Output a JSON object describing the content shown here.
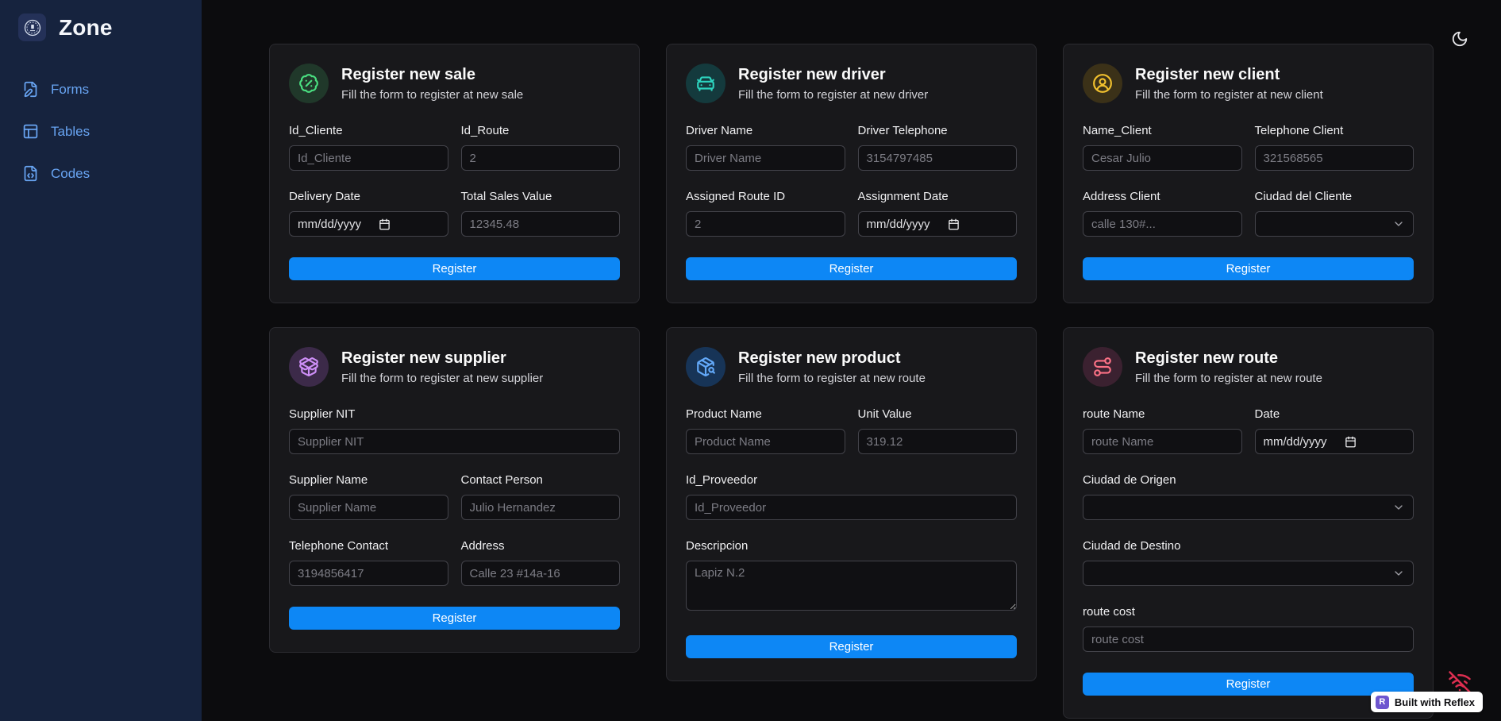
{
  "app": {
    "title": "Zone"
  },
  "sidebar": {
    "items": [
      {
        "label": "Forms",
        "icon": "file-pen-icon"
      },
      {
        "label": "Tables",
        "icon": "table-icon"
      },
      {
        "label": "Codes",
        "icon": "file-code-icon"
      }
    ]
  },
  "topbar": {
    "theme_icon": "moon-icon"
  },
  "colors": {
    "accent_button": "#0d87f5",
    "sidebar_bg": "#16233e",
    "card_bg": "#18181b",
    "page_bg": "#0c0c0e",
    "nav_link": "#68a4f2",
    "error_icon": "#dc2e50"
  },
  "cards": [
    {
      "key": "sale",
      "icon": "badge-percent-icon",
      "icon_color": "#4ade80",
      "icon_bg": "#20382a",
      "title": "Register new sale",
      "subtitle": "Fill the form to register at new sale",
      "button_label": "Register",
      "fields": [
        {
          "label": "Id_Cliente",
          "type": "text",
          "placeholder": "Id_Cliente",
          "span": "half"
        },
        {
          "label": "Id_Route",
          "type": "text",
          "placeholder": "2",
          "span": "half"
        },
        {
          "label": "Delivery Date",
          "type": "date",
          "placeholder": "mm/dd/yyyy",
          "span": "half"
        },
        {
          "label": "Total Sales Value",
          "type": "text",
          "placeholder": "12345.48",
          "span": "half"
        }
      ]
    },
    {
      "key": "driver",
      "icon": "car-front-icon",
      "icon_color": "#2dd4bf",
      "icon_bg": "#143a3d",
      "title": "Register new driver",
      "subtitle": "Fill the form to register at new driver",
      "button_label": "Register",
      "fields": [
        {
          "label": "Driver Name",
          "type": "text",
          "placeholder": "Driver Name",
          "span": "half"
        },
        {
          "label": "Driver Telephone",
          "type": "text",
          "placeholder": "3154797485",
          "span": "half"
        },
        {
          "label": "Assigned Route ID",
          "type": "text",
          "placeholder": "2",
          "span": "half"
        },
        {
          "label": "Assignment Date",
          "type": "date",
          "placeholder": "mm/dd/yyyy",
          "span": "half"
        }
      ]
    },
    {
      "key": "client",
      "icon": "circle-user-icon",
      "icon_color": "#f2c12e",
      "icon_bg": "#3b3118",
      "title": "Register new client",
      "subtitle": "Fill the form to register at new client",
      "button_label": "Register",
      "fields": [
        {
          "label": "Name_Client",
          "type": "text",
          "placeholder": "Cesar Julio",
          "span": "half"
        },
        {
          "label": "Telephone Client",
          "type": "text",
          "placeholder": "321568565",
          "span": "half"
        },
        {
          "label": "Address Client",
          "type": "text",
          "placeholder": "calle 130#...",
          "span": "half"
        },
        {
          "label": "Ciudad del Cliente",
          "type": "select",
          "placeholder": "",
          "span": "half"
        }
      ]
    },
    {
      "key": "supplier",
      "icon": "package-open-icon",
      "icon_color": "#cd8ef6",
      "icon_bg": "#3c2a49",
      "title": "Register new supplier",
      "subtitle": "Fill the form to register at new supplier",
      "button_label": "Register",
      "fields": [
        {
          "label": "Supplier NIT",
          "type": "text",
          "placeholder": "Supplier NIT",
          "span": "full"
        },
        {
          "label": "Supplier Name",
          "type": "text",
          "placeholder": "Supplier Name",
          "span": "half"
        },
        {
          "label": "Contact Person",
          "type": "text",
          "placeholder": "Julio Hernandez",
          "span": "half"
        },
        {
          "label": "Telephone Contact",
          "type": "text",
          "placeholder": "3194856417",
          "span": "half"
        },
        {
          "label": "Address",
          "type": "text",
          "placeholder": "Calle 23 #14a-16",
          "span": "half"
        }
      ]
    },
    {
      "key": "product",
      "icon": "package-search-icon",
      "icon_color": "#63a9f9",
      "icon_bg": "#173457",
      "title": "Register new product",
      "subtitle": "Fill the form to register at new route",
      "button_label": "Register",
      "fields": [
        {
          "label": "Product Name",
          "type": "text",
          "placeholder": "Product Name",
          "span": "half"
        },
        {
          "label": "Unit Value",
          "type": "text",
          "placeholder": "319.12",
          "span": "half"
        },
        {
          "label": "Id_Proveedor",
          "type": "text",
          "placeholder": "Id_Proveedor",
          "span": "full"
        },
        {
          "label": "Descripcion",
          "type": "textarea",
          "placeholder": "Lapiz N.2",
          "span": "full"
        }
      ]
    },
    {
      "key": "route",
      "icon": "route-icon",
      "icon_color": "#fb7185",
      "icon_bg": "#3b2130",
      "title": "Register new route",
      "subtitle": "Fill the form to register at new route",
      "button_label": "Register",
      "fields": [
        {
          "label": "route Name",
          "type": "text",
          "placeholder": "route Name",
          "span": "half"
        },
        {
          "label": "Date",
          "type": "date",
          "placeholder": "mm/dd/yyyy",
          "span": "half"
        },
        {
          "label": "Ciudad de Origen",
          "type": "select",
          "placeholder": "",
          "span": "full"
        },
        {
          "label": "Ciudad de Destino",
          "type": "select",
          "placeholder": "",
          "span": "full"
        },
        {
          "label": "route cost",
          "type": "text",
          "placeholder": "route cost",
          "span": "full"
        }
      ]
    }
  ],
  "status": {
    "reflex_badge": "Built with Reflex",
    "reflex_logo_letter": "R",
    "connection_icon": "wifi-off-icon"
  }
}
